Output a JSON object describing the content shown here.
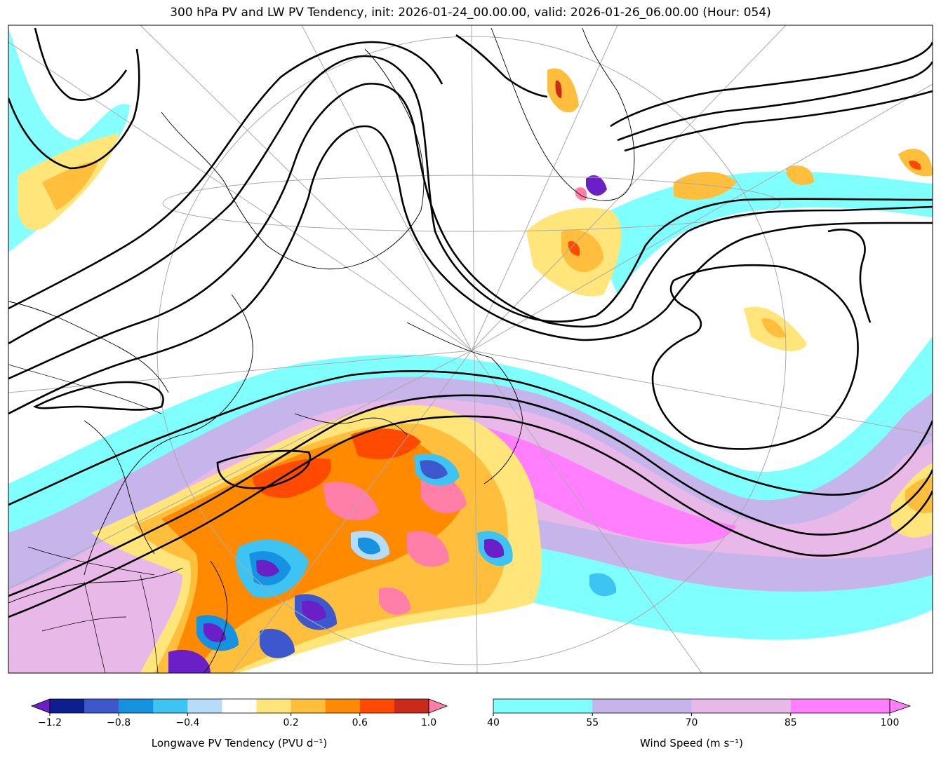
{
  "title": "300 hPa PV and LW PV Tendency, init: 2026-01-24_00.00.00, valid: 2026-01-26_06.00.00 (Hour: 054)",
  "colorbars": {
    "pv_tendency": {
      "label": "Longwave PV Tendency (PVU d⁻¹)",
      "ticks": [
        "−1.2",
        "−0.8",
        "−0.4",
        "0.2",
        "0.6",
        "1.0"
      ],
      "colors": [
        "#6a1fc7",
        "#0d1f8f",
        "#3c58cc",
        "#1592e0",
        "#3dc4f2",
        "#b7dcfa",
        "#ffffff",
        "#ffe57a",
        "#ffbe3b",
        "#ff8a00",
        "#ff4a00",
        "#c92a1a",
        "#ff7fa8"
      ],
      "extend": "both"
    },
    "wind_speed": {
      "label": "Wind Speed (m s⁻¹)",
      "ticks": [
        "40",
        "55",
        "70",
        "85",
        "100"
      ],
      "colors": [
        "#80ffff",
        "#c5b5ea",
        "#e8b8e8",
        "#ff7fff"
      ],
      "extend": "max"
    }
  }
}
